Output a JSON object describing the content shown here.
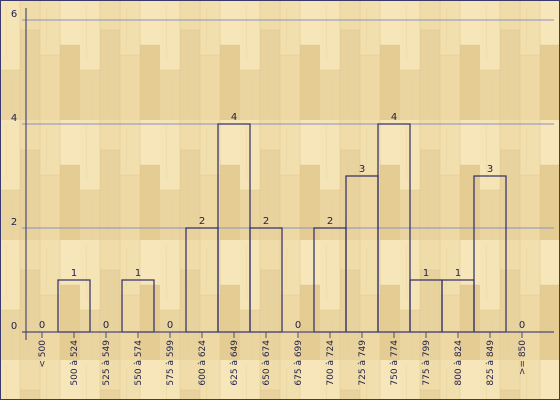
{
  "chart_data": {
    "type": "bar",
    "categories": [
      "< 500",
      "500 à 524",
      "525 à 549",
      "550 à 574",
      "575 à 599",
      "600 à 624",
      "625 à 649",
      "650 à 674",
      "675 à 699",
      "700 à 724",
      "725 à 749",
      "750 à 774",
      "775 à 799",
      "800 à 824",
      "825 à 849",
      ">= 850"
    ],
    "values": [
      0,
      1,
      0,
      1,
      0,
      2,
      4,
      2,
      0,
      2,
      3,
      4,
      1,
      1,
      3,
      0
    ],
    "ylim": [
      0,
      6
    ],
    "yticks": [
      0,
      2,
      4,
      6
    ],
    "grid": true,
    "data_labels": true,
    "title": "",
    "xlabel": "",
    "ylabel": ""
  },
  "colors": {
    "bar_stroke": "#2d2a6b",
    "gridline": "#8d8fc2",
    "axis": "#4a4a7a",
    "text": "#1f1f4a",
    "wood_light": "#f4e2b2",
    "wood_mid": "#ead29a",
    "wood_dark": "#dcc083",
    "frame": "#3a3a6e"
  }
}
